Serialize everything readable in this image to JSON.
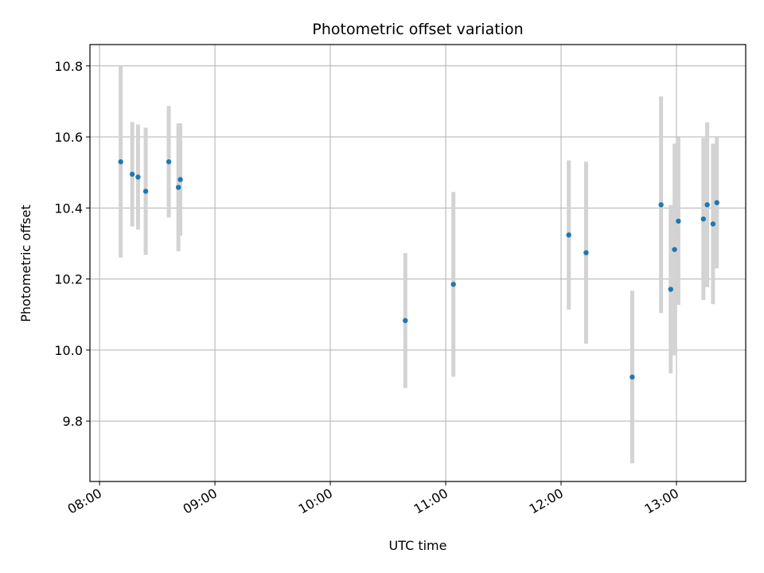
{
  "chart_data": {
    "type": "scatter",
    "title": "Photometric offset variation",
    "xlabel": "UTC time",
    "ylabel": "Photometric offset",
    "x_tick_labels": [
      "08:00",
      "09:00",
      "10:00",
      "11:00",
      "12:00",
      "13:00"
    ],
    "y_tick_labels": [
      "9.8",
      "10.0",
      "10.2",
      "10.4",
      "10.6",
      "10.8"
    ],
    "xlim": [
      "07:55",
      "13:36"
    ],
    "ylim": [
      9.63,
      10.86
    ],
    "grid": true,
    "marker_color": "#1f77b4",
    "errorbar_color": "#d3d3d3",
    "points": [
      {
        "x": "08:11",
        "y": 10.53,
        "yerr": 0.27
      },
      {
        "x": "08:17",
        "y": 10.495,
        "yerr": 0.147
      },
      {
        "x": "08:20",
        "y": 10.487,
        "yerr": 0.148
      },
      {
        "x": "08:24",
        "y": 10.447,
        "yerr": 0.179
      },
      {
        "x": "08:36",
        "y": 10.53,
        "yerr": 0.157
      },
      {
        "x": "08:41",
        "y": 10.458,
        "yerr": 0.18
      },
      {
        "x": "08:42",
        "y": 10.48,
        "yerr": 0.158
      },
      {
        "x": "10:39",
        "y": 10.083,
        "yerr": 0.19
      },
      {
        "x": "11:04",
        "y": 10.185,
        "yerr": 0.26
      },
      {
        "x": "12:04",
        "y": 10.324,
        "yerr": 0.21
      },
      {
        "x": "12:13",
        "y": 10.274,
        "yerr": 0.256
      },
      {
        "x": "12:37",
        "y": 9.924,
        "yerr": 0.243
      },
      {
        "x": "12:52",
        "y": 10.409,
        "yerr": 0.305
      },
      {
        "x": "12:57",
        "y": 10.171,
        "yerr": 0.237
      },
      {
        "x": "12:59",
        "y": 10.283,
        "yerr": 0.298
      },
      {
        "x": "13:01",
        "y": 10.363,
        "yerr": 0.236
      },
      {
        "x": "13:14",
        "y": 10.369,
        "yerr": 0.228
      },
      {
        "x": "13:16",
        "y": 10.409,
        "yerr": 0.232
      },
      {
        "x": "13:19",
        "y": 10.355,
        "yerr": 0.226
      },
      {
        "x": "13:21",
        "y": 10.415,
        "yerr": 0.185
      }
    ]
  }
}
